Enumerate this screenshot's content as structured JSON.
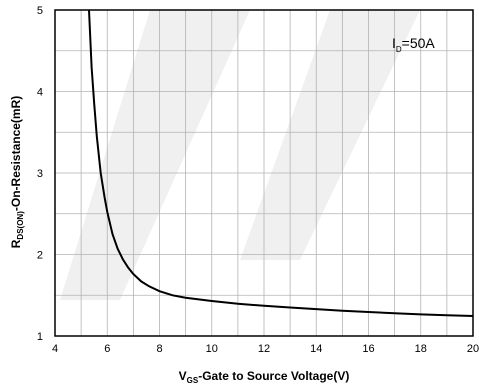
{
  "chart_data": {
    "type": "line",
    "xlabel": {
      "main": "V",
      "sub": "GS",
      "rest": "-Gate to Source Voltage(V)"
    },
    "ylabel": {
      "main": "R",
      "sub": "DS(ON)",
      "rest": "-On-Resistance(mR)"
    },
    "xlim": [
      4,
      20
    ],
    "ylim": [
      1,
      5
    ],
    "x_ticks": [
      4,
      6,
      8,
      10,
      12,
      14,
      16,
      18,
      20
    ],
    "y_ticks": [
      1,
      2,
      3,
      4,
      5
    ],
    "x_tick_labels": [
      "4",
      "6",
      "8",
      "10",
      "12",
      "14",
      "16",
      "18",
      "20"
    ],
    "y_tick_labels": [
      "1",
      "2",
      "3",
      "4",
      "5"
    ],
    "grid": true,
    "annotation": {
      "main": "I",
      "sub": "D",
      "rest": "=50A"
    },
    "series": [
      {
        "color": "#000000",
        "x": [
          5.3,
          5.4,
          5.5,
          5.6,
          5.75,
          5.9,
          6.0,
          6.2,
          6.4,
          6.6,
          6.8,
          7.0,
          7.3,
          7.6,
          8.0,
          8.5,
          9.0,
          10.0,
          11.0,
          12.0,
          13.0,
          14.0,
          15.0,
          16.0,
          17.0,
          18.0,
          19.0,
          20.0
        ],
        "y": [
          5.0,
          4.3,
          3.85,
          3.45,
          3.0,
          2.7,
          2.52,
          2.25,
          2.07,
          1.94,
          1.84,
          1.76,
          1.67,
          1.61,
          1.55,
          1.5,
          1.47,
          1.43,
          1.395,
          1.37,
          1.35,
          1.33,
          1.31,
          1.295,
          1.28,
          1.265,
          1.255,
          1.245
        ]
      }
    ]
  }
}
